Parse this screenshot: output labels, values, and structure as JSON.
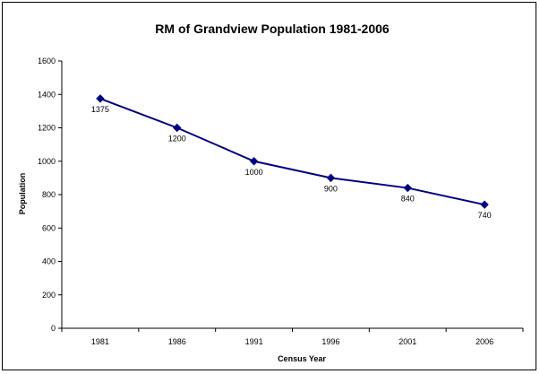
{
  "chart_data": {
    "type": "line",
    "title": "RM of Grandview Population 1981-2006",
    "xlabel": "Census Year",
    "ylabel": "Population",
    "categories": [
      "1981",
      "1986",
      "1991",
      "1996",
      "2001",
      "2006"
    ],
    "series": [
      {
        "values": [
          1375,
          1200,
          1000,
          900,
          840,
          740
        ]
      }
    ],
    "data_labels": [
      "1375",
      "1200",
      "1000",
      "900",
      "840",
      "740"
    ],
    "ylim": [
      0,
      1600
    ],
    "yticks": [
      0,
      200,
      400,
      600,
      800,
      1000,
      1200,
      1400,
      1600
    ],
    "ytick_labels": [
      "0",
      "200",
      "400",
      "600",
      "800",
      "1000",
      "1200",
      "1400",
      "1600"
    ],
    "grid": false,
    "legend": "none",
    "line_color": "#000080",
    "marker": "diamond"
  }
}
